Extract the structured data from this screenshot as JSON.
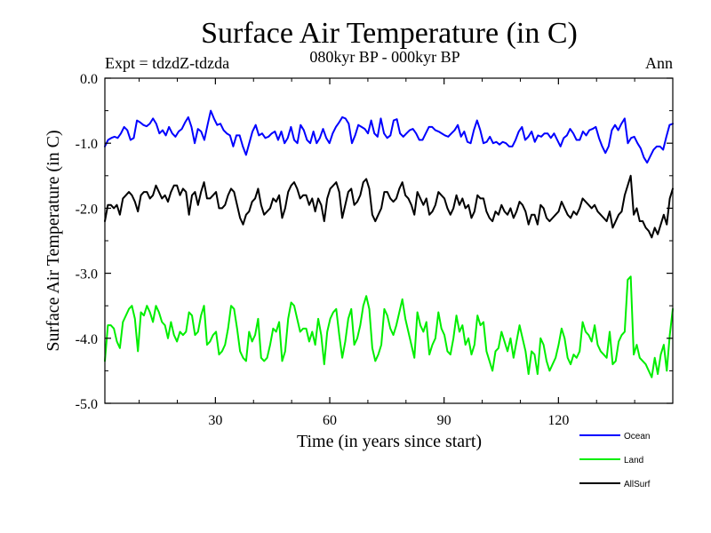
{
  "chart_data": {
    "type": "line",
    "title": "Surface Air Temperature (in C)",
    "subtitle": "080kyr BP - 000kyr BP",
    "experiment_label": "Expt = tdzdZ-tdzda",
    "season_label": "Ann",
    "xlabel": "Time (in years since start)",
    "ylabel": "Surface Air Temperature (in C)",
    "xlim": [
      1,
      150
    ],
    "ylim": [
      -5.0,
      0.0
    ],
    "xticks": [
      30,
      60,
      90,
      120
    ],
    "xtick_labels": [
      "30",
      "60",
      "90",
      "120"
    ],
    "yticks": [
      0.0,
      -1.0,
      -2.0,
      -3.0,
      -4.0,
      -5.0
    ],
    "ytick_labels": [
      "0.0",
      "-1.0",
      "-2.0",
      "-3.0",
      "-4.0",
      "-5.0"
    ],
    "grid": false,
    "legend_position": "bottom-right",
    "series": [
      {
        "name": "Ocean",
        "color": "#0000ff",
        "values": [
          -1.05,
          -0.95,
          -0.92,
          -0.9,
          -0.92,
          -0.85,
          -0.75,
          -0.8,
          -0.95,
          -0.92,
          -0.65,
          -0.68,
          -0.72,
          -0.74,
          -0.7,
          -0.62,
          -0.7,
          -0.85,
          -0.8,
          -0.88,
          -0.75,
          -0.85,
          -0.9,
          -0.82,
          -0.78,
          -0.68,
          -0.6,
          -0.75,
          -1.0,
          -0.78,
          -0.82,
          -0.95,
          -0.72,
          -0.5,
          -0.62,
          -0.72,
          -0.7,
          -0.8,
          -0.85,
          -0.88,
          -1.05,
          -0.88,
          -0.88,
          -1.05,
          -1.18,
          -1.0,
          -0.82,
          -0.72,
          -0.88,
          -0.85,
          -0.92,
          -0.9,
          -0.85,
          -0.82,
          -0.95,
          -0.82,
          -1.0,
          -0.92,
          -0.75,
          -0.95,
          -1.0,
          -0.72,
          -0.8,
          -0.95,
          -1.0,
          -0.82,
          -1.0,
          -0.92,
          -0.78,
          -0.92,
          -1.0,
          -0.85,
          -0.75,
          -0.68,
          -0.6,
          -0.62,
          -0.7,
          -1.0,
          -0.88,
          -0.72,
          -0.75,
          -0.78,
          -0.85,
          -0.65,
          -0.85,
          -0.9,
          -0.62,
          -0.85,
          -0.92,
          -0.88,
          -0.65,
          -0.63,
          -0.85,
          -0.9,
          -0.85,
          -0.8,
          -0.78,
          -0.85,
          -0.95,
          -0.95,
          -0.85,
          -0.75,
          -0.75,
          -0.8,
          -0.82,
          -0.85,
          -0.88,
          -0.9,
          -0.85,
          -0.8,
          -0.72,
          -0.9,
          -0.82,
          -0.98,
          -1.0,
          -0.8,
          -0.65,
          -0.8,
          -1.0,
          -0.98,
          -0.9,
          -1.0,
          -0.98,
          -1.02,
          -0.98,
          -1.0,
          -1.05,
          -1.05,
          -0.95,
          -0.82,
          -0.75,
          -0.95,
          -0.9,
          -0.82,
          -0.98,
          -0.88,
          -0.9,
          -0.85,
          -0.85,
          -0.92,
          -0.85,
          -0.95,
          -1.05,
          -0.92,
          -0.88,
          -0.78,
          -0.85,
          -0.95,
          -0.95,
          -0.82,
          -0.88,
          -0.8,
          -0.78,
          -0.75,
          -0.92,
          -1.05,
          -1.15,
          -1.05,
          -0.8,
          -0.72,
          -0.8,
          -0.7,
          -0.62,
          -1.0,
          -0.92,
          -0.9,
          -1.0,
          -1.08,
          -1.22,
          -1.3,
          -1.2,
          -1.1,
          -1.05,
          -1.05,
          -1.1,
          -0.9,
          -0.72,
          -0.7
        ]
      },
      {
        "name": "Land",
        "color": "#00ee00",
        "values": [
          -4.35,
          -3.8,
          -3.8,
          -3.85,
          -4.05,
          -4.15,
          -3.75,
          -3.65,
          -3.55,
          -3.5,
          -3.7,
          -4.2,
          -3.6,
          -3.65,
          -3.5,
          -3.6,
          -3.75,
          -3.5,
          -3.6,
          -3.75,
          -3.8,
          -4.0,
          -3.75,
          -3.95,
          -4.05,
          -3.9,
          -3.95,
          -3.9,
          -3.6,
          -3.65,
          -3.95,
          -3.9,
          -3.65,
          -3.5,
          -4.1,
          -4.05,
          -3.95,
          -3.9,
          -4.25,
          -4.2,
          -4.1,
          -3.85,
          -3.5,
          -3.55,
          -3.85,
          -4.2,
          -4.3,
          -4.35,
          -3.9,
          -4.05,
          -3.95,
          -3.7,
          -4.3,
          -4.35,
          -4.3,
          -4.1,
          -3.85,
          -3.9,
          -3.75,
          -4.35,
          -4.2,
          -3.7,
          -3.45,
          -3.5,
          -3.7,
          -3.9,
          -3.85,
          -3.85,
          -4.05,
          -3.9,
          -4.1,
          -3.7,
          -3.95,
          -4.4,
          -3.9,
          -3.7,
          -3.6,
          -3.55,
          -3.95,
          -4.3,
          -4.05,
          -3.7,
          -3.55,
          -4.1,
          -4.0,
          -3.8,
          -3.5,
          -3.35,
          -3.55,
          -4.15,
          -4.35,
          -4.25,
          -4.1,
          -3.55,
          -3.65,
          -3.85,
          -3.95,
          -3.8,
          -3.6,
          -3.4,
          -3.7,
          -3.9,
          -4.1,
          -4.3,
          -3.6,
          -3.8,
          -3.9,
          -3.75,
          -4.25,
          -4.1,
          -4.0,
          -3.6,
          -3.85,
          -3.95,
          -4.2,
          -4.25,
          -4.0,
          -3.65,
          -3.9,
          -3.8,
          -4.1,
          -4.0,
          -4.25,
          -4.1,
          -3.65,
          -3.8,
          -3.75,
          -4.2,
          -4.35,
          -4.5,
          -4.2,
          -4.15,
          -3.9,
          -4.05,
          -4.2,
          -4.0,
          -4.3,
          -4.05,
          -3.8,
          -4.0,
          -4.2,
          -4.55,
          -4.2,
          -4.25,
          -4.55,
          -4.0,
          -4.1,
          -4.35,
          -4.5,
          -4.4,
          -4.3,
          -4.1,
          -3.85,
          -4.0,
          -4.3,
          -4.4,
          -4.25,
          -4.3,
          -4.2,
          -3.75,
          -3.9,
          -3.95,
          -4.05,
          -3.8,
          -4.1,
          -4.2,
          -4.25,
          -4.3,
          -3.9,
          -4.4,
          -4.35,
          -4.05,
          -3.95,
          -3.9,
          -3.1,
          -3.05,
          -4.25,
          -4.1,
          -4.3,
          -4.35,
          -4.4,
          -4.5,
          -4.6,
          -4.3,
          -4.55,
          -4.25,
          -4.1,
          -4.5,
          -3.95,
          -3.55
        ]
      },
      {
        "name": "AllSurf",
        "color": "#000000",
        "values": [
          -2.2,
          -1.95,
          -1.95,
          -2.0,
          -1.95,
          -2.1,
          -1.85,
          -1.8,
          -1.75,
          -1.8,
          -1.9,
          -2.05,
          -1.8,
          -1.75,
          -1.75,
          -1.85,
          -1.8,
          -1.65,
          -1.75,
          -1.85,
          -1.8,
          -1.9,
          -1.75,
          -1.65,
          -1.65,
          -1.8,
          -1.7,
          -1.75,
          -2.1,
          -1.8,
          -1.75,
          -1.95,
          -1.75,
          -1.6,
          -1.85,
          -1.85,
          -1.8,
          -1.75,
          -2.0,
          -2.0,
          -1.95,
          -1.8,
          -1.7,
          -1.75,
          -1.95,
          -2.15,
          -2.25,
          -2.1,
          -2.05,
          -1.9,
          -1.85,
          -1.7,
          -1.95,
          -2.1,
          -2.05,
          -2.0,
          -1.85,
          -1.9,
          -1.8,
          -2.15,
          -2.0,
          -1.75,
          -1.65,
          -1.6,
          -1.7,
          -1.85,
          -1.8,
          -1.8,
          -1.95,
          -1.85,
          -2.05,
          -1.85,
          -1.95,
          -2.2,
          -1.85,
          -1.7,
          -1.65,
          -1.6,
          -1.75,
          -2.15,
          -1.95,
          -1.75,
          -1.7,
          -1.95,
          -1.9,
          -1.8,
          -1.6,
          -1.55,
          -1.7,
          -2.1,
          -2.2,
          -2.1,
          -2.0,
          -1.75,
          -1.75,
          -1.85,
          -1.9,
          -1.85,
          -1.7,
          -1.6,
          -1.8,
          -1.85,
          -1.95,
          -2.1,
          -1.75,
          -1.85,
          -1.95,
          -1.85,
          -2.1,
          -2.05,
          -1.95,
          -1.75,
          -1.8,
          -1.85,
          -2.0,
          -2.1,
          -2.0,
          -1.8,
          -1.95,
          -1.85,
          -2.0,
          -1.95,
          -2.15,
          -2.05,
          -1.8,
          -1.85,
          -1.85,
          -2.05,
          -2.15,
          -2.2,
          -2.05,
          -2.1,
          -1.95,
          -2.05,
          -2.1,
          -2.0,
          -2.15,
          -2.05,
          -1.9,
          -1.95,
          -2.05,
          -2.25,
          -2.1,
          -2.1,
          -2.25,
          -1.95,
          -2.0,
          -2.15,
          -2.2,
          -2.15,
          -2.1,
          -2.05,
          -1.9,
          -2.0,
          -2.1,
          -2.15,
          -2.05,
          -2.1,
          -2.0,
          -1.85,
          -1.9,
          -1.95,
          -2.0,
          -1.95,
          -2.05,
          -2.1,
          -2.15,
          -2.2,
          -2.05,
          -2.3,
          -2.2,
          -2.1,
          -2.05,
          -1.8,
          -1.65,
          -1.5,
          -2.1,
          -2.0,
          -2.2,
          -2.2,
          -2.3,
          -2.35,
          -2.45,
          -2.3,
          -2.4,
          -2.25,
          -2.1,
          -2.25,
          -1.85,
          -1.7
        ]
      }
    ]
  }
}
